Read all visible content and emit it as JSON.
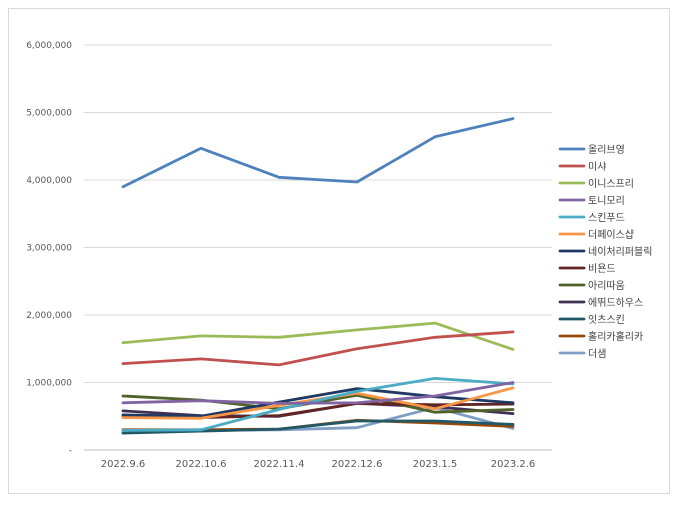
{
  "chart_data": {
    "type": "line",
    "title": "",
    "xlabel": "",
    "ylabel": "",
    "categories": [
      "2022.9.6",
      "2022.10.6",
      "2022.11.4",
      "2022.12.6",
      "2023.1.5",
      "2023.2.6"
    ],
    "ylim": [
      0,
      6000000
    ],
    "yticks": [
      0,
      1000000,
      2000000,
      3000000,
      4000000,
      5000000,
      6000000
    ],
    "ytick_labels": [
      "-",
      "1,000,000",
      "2,000,000",
      "3,000,000",
      "4,000,000",
      "5,000,000",
      "6,000,000"
    ],
    "grid": true,
    "legend_position": "right",
    "series": [
      {
        "name": "올리브영",
        "color": "#4f81bd",
        "values": [
          3900000,
          4470000,
          4040000,
          3970000,
          4640000,
          4910000
        ]
      },
      {
        "name": "미샤",
        "color": "#c0504d",
        "values": [
          1280000,
          1350000,
          1260000,
          1500000,
          1670000,
          1750000
        ]
      },
      {
        "name": "이니스프리",
        "color": "#9bbb59",
        "values": [
          1590000,
          1690000,
          1670000,
          1780000,
          1880000,
          1490000
        ]
      },
      {
        "name": "토니모리",
        "color": "#8064a2",
        "values": [
          700000,
          730000,
          690000,
          700000,
          800000,
          1000000
        ]
      },
      {
        "name": "스킨푸드",
        "color": "#4bacc6",
        "values": [
          290000,
          300000,
          600000,
          870000,
          1060000,
          980000
        ]
      },
      {
        "name": "더페이스샵",
        "color": "#f79646",
        "values": [
          480000,
          470000,
          660000,
          840000,
          610000,
          920000
        ]
      },
      {
        "name": "네이처리퍼블릭",
        "color": "#1f3864",
        "values": [
          520000,
          500000,
          710000,
          910000,
          790000,
          700000
        ]
      },
      {
        "name": "비욘드",
        "color": "#632523",
        "values": [
          510000,
          480000,
          510000,
          690000,
          670000,
          680000
        ]
      },
      {
        "name": "아리따움",
        "color": "#4f6228",
        "values": [
          800000,
          740000,
          610000,
          810000,
          560000,
          600000
        ]
      },
      {
        "name": "에뛰드하우스",
        "color": "#3f3151",
        "values": [
          580000,
          510000,
          500000,
          690000,
          640000,
          540000
        ]
      },
      {
        "name": "잇츠스킨",
        "color": "#215967",
        "values": [
          250000,
          280000,
          310000,
          430000,
          430000,
          380000
        ]
      },
      {
        "name": "홀리카홀리카",
        "color": "#984807",
        "values": [
          300000,
          300000,
          310000,
          440000,
          400000,
          350000
        ]
      },
      {
        "name": "더샘",
        "color": "#7f9fc4",
        "values": [
          280000,
          290000,
          300000,
          330000,
          630000,
          320000
        ]
      }
    ]
  }
}
